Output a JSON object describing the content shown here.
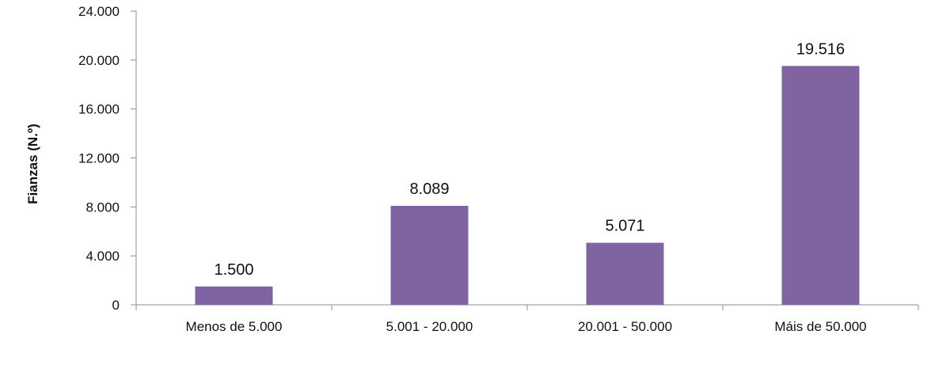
{
  "chart_data": {
    "type": "bar",
    "categories": [
      "Menos de 5.000",
      "5.001 - 20.000",
      "20.001 - 50.000",
      "Máis de 50.000"
    ],
    "values": [
      1500,
      8089,
      5071,
      19516
    ],
    "value_labels": [
      "1.500",
      "8.089",
      "5.071",
      "19.516"
    ],
    "title": "",
    "xlabel": "",
    "ylabel": "Fianzas (N.º)",
    "ylim": [
      0,
      24000
    ],
    "yticks": [
      0,
      4000,
      8000,
      12000,
      16000,
      20000,
      24000
    ],
    "ytick_labels": [
      "0",
      "4.000",
      "8.000",
      "12.000",
      "16.000",
      "20.000",
      "24.000"
    ],
    "grid": false,
    "legend": "none",
    "bar_color": "#8064A2",
    "axis_color": "#8c8c8c"
  }
}
